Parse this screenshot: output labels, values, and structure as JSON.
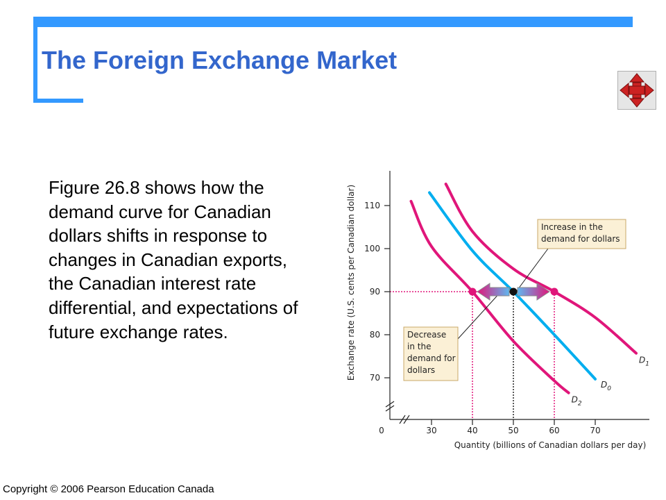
{
  "slide": {
    "title": "The Foreign Exchange Market",
    "body": "Figure 26.8 shows how the demand curve for Canadian dollars shifts in response to changes in Canadian exports, the Canadian interest rate differential, and expectations of future exchange rates.",
    "copyright": "Copyright © 2006 Pearson Education Canada",
    "nav_icon": "four-way-arrows-icon"
  },
  "colors": {
    "accent": "#3399ff",
    "title": "#3366cc",
    "d0": "#00aeef",
    "shift": "#e0167a",
    "annotation_fill": "#fbf0d6",
    "annotation_border": "#c9a868"
  },
  "chart_data": {
    "type": "line",
    "xlabel": "Quantity (billions of Canadian dollars per day)",
    "ylabel": "Exchange rate (U.S. cents per Canadian dollar)",
    "xlim": [
      20,
      80
    ],
    "ylim": [
      60,
      118
    ],
    "x_ticks": [
      0,
      30,
      40,
      50,
      60,
      70
    ],
    "y_ticks": [
      70,
      80,
      90,
      100,
      110
    ],
    "highlight_ticks": {
      "x": [
        40,
        60
      ],
      "y": [
        90
      ]
    },
    "axis_breaks": true,
    "series": [
      {
        "name": "D1",
        "label_main": "D",
        "label_sub": "1",
        "role": "increase",
        "points": [
          [
            33.5,
            115
          ],
          [
            40,
            104
          ],
          [
            50,
            95.3
          ],
          [
            60,
            90
          ],
          [
            70,
            84
          ],
          [
            80,
            75.7
          ]
        ]
      },
      {
        "name": "D0",
        "label_main": "D",
        "label_sub": "0",
        "role": "original",
        "points": [
          [
            29.5,
            113
          ],
          [
            40,
            99.5
          ],
          [
            50,
            90
          ],
          [
            60,
            80
          ],
          [
            70,
            69.7
          ]
        ]
      },
      {
        "name": "D2",
        "label_main": "D",
        "label_sub": "2",
        "role": "decrease",
        "points": [
          [
            25,
            111
          ],
          [
            30,
            100.5
          ],
          [
            40,
            90
          ],
          [
            50,
            78.5
          ],
          [
            60,
            69.3
          ],
          [
            63.5,
            66.5
          ]
        ]
      }
    ],
    "equilibrium_points": [
      {
        "x": 50,
        "y": 90,
        "color": "black"
      },
      {
        "x": 40,
        "y": 90,
        "color": "shift"
      },
      {
        "x": 60,
        "y": 90,
        "color": "shift"
      }
    ],
    "annotations": [
      {
        "lines": [
          "Increase in the",
          "demand for dollars"
        ],
        "target": "D1"
      },
      {
        "lines": [
          "Decrease",
          "in the",
          "demand for",
          "dollars"
        ],
        "target": "D2"
      }
    ]
  }
}
